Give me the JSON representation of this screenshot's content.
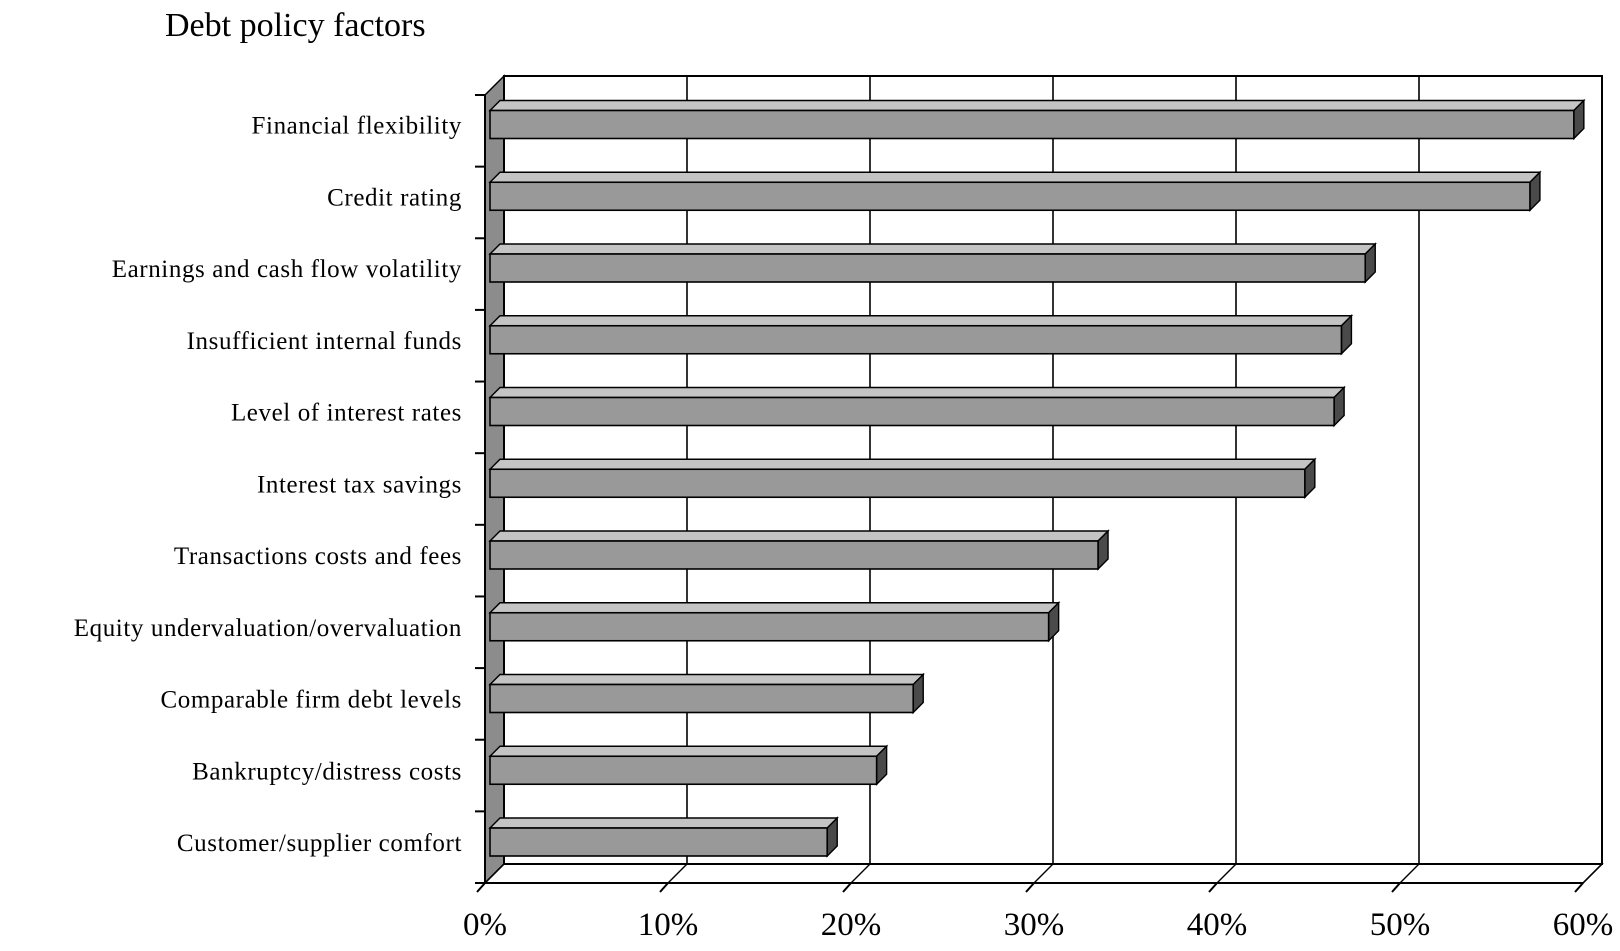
{
  "chart_data": {
    "type": "bar",
    "orientation": "horizontal",
    "style": "3d",
    "title": "Debt policy factors",
    "xlabel": "",
    "ylabel": "",
    "xlim": [
      0,
      60
    ],
    "x_ticks": [
      "0%",
      "10%",
      "20%",
      "30%",
      "40%",
      "50%",
      "60%"
    ],
    "grid": true,
    "legend": "none",
    "categories": [
      "Financial flexibility",
      "Credit rating",
      "Earnings and cash flow volatility",
      "Insufficient internal funds",
      "Level of interest rates",
      "Interest tax savings",
      "Transactions costs and fees",
      "Equity undervaluation/overvaluation",
      "Comparable firm debt levels",
      "Bankruptcy/distress costs",
      "Customer/supplier comfort"
    ],
    "values": [
      59.5,
      57.1,
      48.1,
      46.8,
      46.4,
      44.8,
      33.5,
      30.8,
      23.4,
      21.4,
      18.7
    ],
    "colors": {
      "bar_face": "#999999",
      "bar_top": "#c4c4c4",
      "bar_side": "#4a4a4a",
      "wall_side": "#8c8c8c",
      "grid": "#000000",
      "text": "#000000"
    }
  }
}
